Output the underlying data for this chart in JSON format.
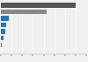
{
  "values": [
    7018558,
    4299233,
    726438,
    495871,
    426346,
    283003,
    89210,
    22661
  ],
  "bar_colors": [
    "#555555",
    "#888888",
    "#1f77c8",
    "#1f77c8",
    "#1f77c8",
    "#1f77c8",
    "#1f77c8",
    "#1f77c8"
  ],
  "background_color": "#f0f0f0",
  "xlim": [
    0,
    8000000
  ],
  "bar_height": 0.7
}
